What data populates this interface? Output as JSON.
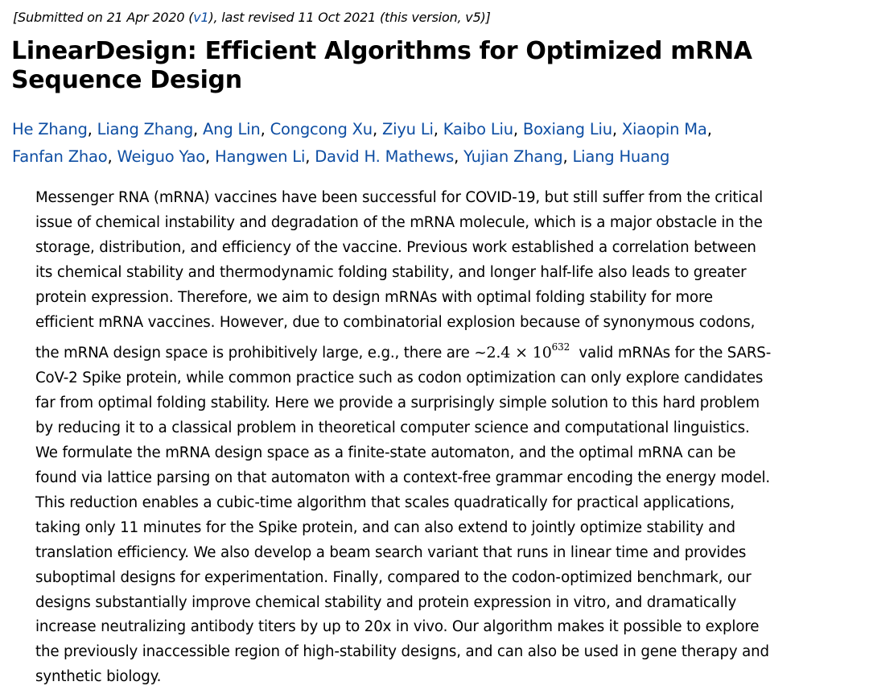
{
  "dateline": {
    "prefix": "[Submitted on 21 Apr 2020 (",
    "v1_link": "v1",
    "suffix": "), last revised 11 Oct 2021 (this version, v5)]"
  },
  "title_lines": [
    "LinearDesign: Efficient Algorithms for Optimized mRNA",
    "Sequence Design"
  ],
  "authors": [
    "He Zhang",
    "Liang Zhang",
    "Ang Lin",
    "Congcong Xu",
    "Ziyu Li",
    "Kaibo Liu",
    "Boxiang Liu",
    "Xiaopin Ma",
    "Fanfan Zhao",
    "Weiguo Yao",
    "Hangwen Li",
    "David H. Mathews",
    "Yujian Zhang",
    "Liang Huang"
  ],
  "link_color": "#0e4ea3",
  "abstract": {
    "lines_before": [
      "Messenger RNA (mRNA) vaccines have been successful for COVID-19, but still suffer from the critical",
      "issue of chemical instability and degradation of the mRNA molecule, which is a major obstacle in the",
      "storage, distribution, and efficiency of the vaccine. Previous work established a correlation between",
      "its chemical stability and thermodynamic folding stability, and longer half-life also leads to greater",
      "protein expression. Therefore, we aim to design mRNAs with optimal folding stability for more",
      "efficient mRNA vaccines. However, due to combinatorial explosion because of synonymous codons,"
    ],
    "math_line": {
      "before": "the mRNA design space is prohibitively large, e.g., there are ~",
      "math_base": "2.4 × 10",
      "math_exp": "632",
      "after": "  valid mRNAs for the SARS-"
    },
    "lines_after": [
      "CoV-2 Spike protein, while common practice such as codon optimization can only explore candidates",
      "far from optimal folding stability. Here we provide a surprisingly simple solution to this hard problem",
      "by reducing it to a classical problem in theoretical computer science and computational linguistics.",
      "We formulate the mRNA design space as a finite-state automaton, and the optimal mRNA can be",
      "found via lattice parsing on that automaton with a context-free grammar encoding the energy model.",
      "This reduction enables a cubic-time algorithm that scales quadratically for practical applications,",
      "taking only 11 minutes for the Spike protein, and can also extend to jointly optimize stability and",
      "translation efficiency. We also develop a beam search variant that runs in linear time and provides",
      "suboptimal designs for experimentation. Finally, compared to the codon-optimized benchmark, our",
      "designs substantially improve chemical stability and protein expression in vitro, and dramatically",
      "increase neutralizing antibody titers by up to 20x in vivo. Our algorithm makes it possible to explore",
      "the previously inaccessible region of high-stability designs, and can also be used in gene therapy and",
      "synthetic biology."
    ]
  }
}
